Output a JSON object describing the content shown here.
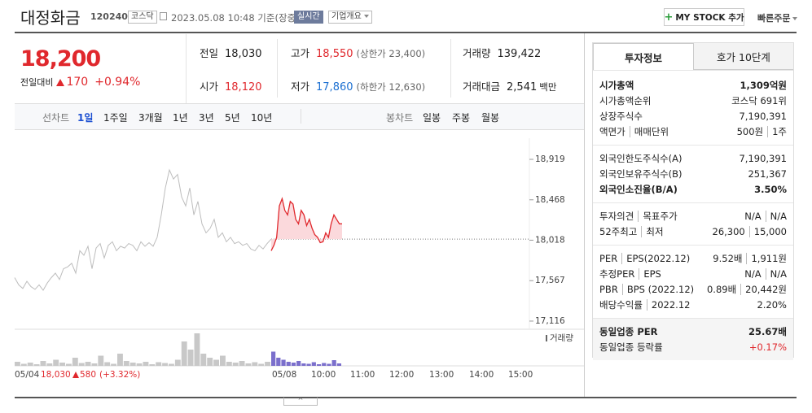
{
  "header": {
    "name": "대정화금",
    "code": "120240",
    "market": "코스닥",
    "time": "2023.05.08 10:48 기준(장중)",
    "realtime": "실시간",
    "overview": "기업개요",
    "mystock": "MY STOCK 추가",
    "quick_order": "빠른주문"
  },
  "price": {
    "current": "18,200",
    "change_label": "전일대비",
    "change": "170",
    "rate": "+0.94%"
  },
  "quote": [
    {
      "label": "전일",
      "value": "18,030"
    },
    {
      "label": "고가",
      "value": "18,550",
      "extra": "(상한가 23,400)",
      "color": "#e0282d"
    },
    {
      "label": "거래량",
      "value": "139,422"
    },
    {
      "label": "시가",
      "value": "18,120",
      "color": "#e0282d"
    },
    {
      "label": "저가",
      "value": "17,860",
      "extra": "(하한가 12,630)",
      "color": "#1b6fd1"
    },
    {
      "label": "거래대금",
      "value": "2,541",
      "unit": "백만"
    }
  ],
  "chart_tabs": {
    "line": "선차트",
    "line_periods": [
      "1일",
      "1주일",
      "3개월",
      "1년",
      "3년",
      "5년",
      "10년"
    ],
    "candle": "봉차트",
    "candle_periods": [
      "일봉",
      "주봉",
      "월봉"
    ]
  },
  "chart_data": {
    "type": "line",
    "ylim": [
      17025,
      19064
    ],
    "yticks": [
      {
        "value": 18919,
        "label": "18,919"
      },
      {
        "value": 18468,
        "label": "18,468"
      },
      {
        "value": 18018,
        "label": "18,018"
      },
      {
        "value": 17567,
        "label": "17,567"
      },
      {
        "value": 17116,
        "label": "17,116"
      }
    ],
    "baseline": 18030,
    "series": [
      {
        "color": "#bdbdbd",
        "values": [
          17600,
          17520,
          17480,
          17560,
          17500,
          17470,
          17520,
          17460,
          17540,
          17600,
          17650,
          17580,
          17700,
          17720,
          17760,
          17650,
          17900,
          17850,
          17950,
          17700,
          17930,
          17980,
          17820,
          17960,
          18000,
          17900,
          17950,
          17930,
          17980,
          17960,
          17900,
          18000,
          17950,
          17990,
          17950,
          18050,
          18300,
          18600,
          18800,
          18700,
          18750,
          18500,
          18400,
          18600,
          18300,
          18450,
          18200,
          18100,
          18150,
          18250,
          18050,
          18100,
          18000,
          18050,
          17980,
          18000,
          17960,
          17980,
          17920,
          17900,
          17960,
          17920,
          17980,
          18030
        ]
      },
      {
        "color": "#e0282d",
        "values": [
          17900,
          17960,
          18050,
          18400,
          18480,
          18350,
          18300,
          18450,
          18420,
          18250,
          18200,
          18350,
          18300,
          18180,
          18250,
          18150,
          18080,
          18050,
          17990,
          18000,
          18100,
          18050,
          18200,
          18300,
          18250,
          18200,
          18200
        ]
      }
    ],
    "volume_label": "거래량",
    "volume": [
      {
        "color": "#c8c8c8",
        "values": [
          10,
          5,
          8,
          4,
          12,
          6,
          15,
          8,
          5,
          20,
          7,
          10,
          6,
          25,
          9,
          5,
          30,
          12,
          8,
          6,
          10,
          4,
          9,
          7,
          5,
          15,
          60,
          40,
          80,
          30,
          20,
          15,
          25,
          10,
          8,
          12,
          6,
          9,
          5,
          10
        ]
      },
      {
        "color": "#7b6fcc",
        "values": [
          35,
          20,
          15,
          10,
          8,
          12,
          6,
          5,
          9,
          4,
          7,
          5,
          14,
          6
        ]
      }
    ],
    "x_labels": [
      "05/04",
      "05/08",
      "10:00",
      "11:00",
      "12:00",
      "13:00",
      "14:00",
      "15:00"
    ],
    "prev_day": {
      "close": "18,030",
      "change": "580",
      "rate": "(+3.32%)"
    }
  },
  "info": {
    "tabs": [
      "투자정보",
      "호가 10단계"
    ],
    "groups": [
      {
        "rows": [
          {
            "label": [
              "시가총액"
            ],
            "value": [
              "1,309억원"
            ],
            "bold": true
          },
          {
            "label": [
              "시가총액순위"
            ],
            "value": [
              "코스닥 691위"
            ]
          },
          {
            "label": [
              "상장주식수"
            ],
            "value": [
              "7,190,391"
            ]
          },
          {
            "label": [
              "액면가",
              "매매단위"
            ],
            "value": [
              "500원",
              "1주"
            ]
          }
        ]
      },
      {
        "rows": [
          {
            "label": [
              "외국인한도주식수(A)"
            ],
            "value": [
              "7,190,391"
            ]
          },
          {
            "label": [
              "외국인보유주식수(B)"
            ],
            "value": [
              "251,367"
            ]
          },
          {
            "label": [
              "외국인소진율(B/A)"
            ],
            "value": [
              "3.50%"
            ],
            "bold": true
          }
        ]
      },
      {
        "rows": [
          {
            "label": [
              "투자의견",
              "목표주가"
            ],
            "value": [
              "N/A",
              "N/A"
            ]
          },
          {
            "label": [
              "52주최고",
              "최저"
            ],
            "value": [
              "26,300",
              "15,000"
            ]
          }
        ]
      },
      {
        "rows": [
          {
            "label": [
              "PER",
              "EPS(2022.12)"
            ],
            "value": [
              "9.52배",
              "1,911원"
            ]
          },
          {
            "label": [
              "추정PER",
              "EPS"
            ],
            "value": [
              "N/A",
              "N/A"
            ]
          },
          {
            "label": [
              "PBR",
              "BPS (2022.12)"
            ],
            "value": [
              "0.89배",
              "20,442원"
            ]
          },
          {
            "label": [
              "배당수익률",
              "2022.12"
            ],
            "value": [
              "2.20%"
            ]
          }
        ]
      },
      {
        "rows": [
          {
            "label": [
              "동일업종 PER"
            ],
            "value": [
              "25.67배"
            ],
            "bold": true
          },
          {
            "label": [
              "동일업종 등락률"
            ],
            "value": [
              "+0.17%"
            ],
            "color": "#e0282d"
          }
        ]
      }
    ]
  }
}
